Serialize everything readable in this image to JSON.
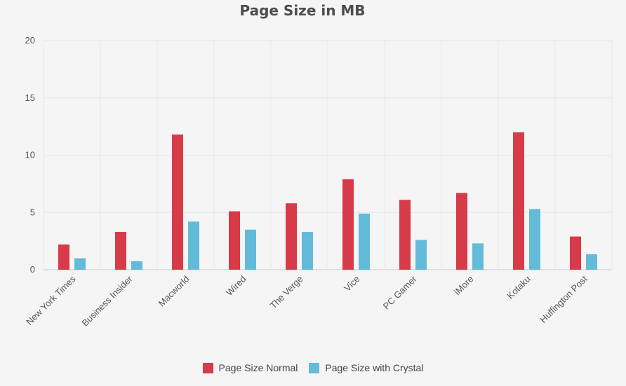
{
  "chart_data": {
    "type": "bar",
    "title": "Page Size in MB",
    "xlabel": "",
    "ylabel": "",
    "ylim": [
      0,
      20
    ],
    "yticks": [
      0,
      5,
      10,
      15,
      20
    ],
    "grid": true,
    "legend_position": "bottom",
    "categories": [
      "New York Times",
      "Business Insider",
      "Macworld",
      "Wired",
      "The Verge",
      "Vice",
      "PC Gamer",
      "iMore",
      "Kotaku",
      "Huffington Post"
    ],
    "series": [
      {
        "name": "Page Size Normal",
        "color": "#d73a49",
        "values": [
          2.2,
          3.3,
          11.8,
          5.1,
          5.8,
          7.9,
          6.1,
          6.7,
          12.0,
          2.9
        ]
      },
      {
        "name": "Page Size with Crystal",
        "color": "#62bcd9",
        "values": [
          1.0,
          0.75,
          4.2,
          3.5,
          3.3,
          4.9,
          2.6,
          2.3,
          5.3,
          1.35
        ]
      }
    ]
  }
}
